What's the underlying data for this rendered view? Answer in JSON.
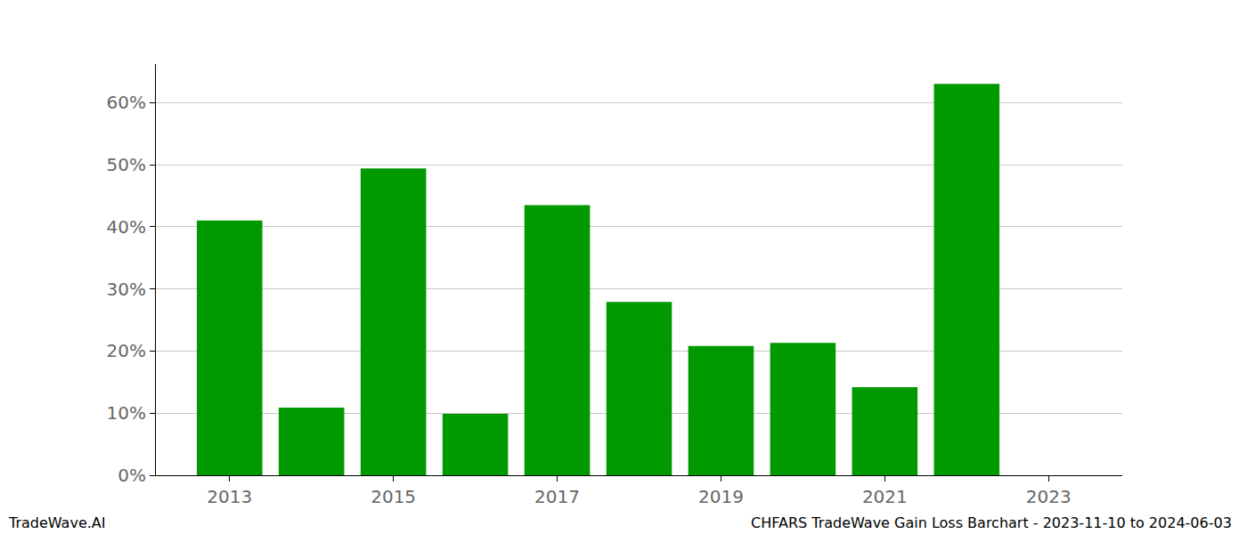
{
  "chart_data": {
    "type": "bar",
    "x": [
      2013,
      2014,
      2015,
      2016,
      2017,
      2018,
      2019,
      2020,
      2021,
      2022
    ],
    "values": [
      41.0,
      10.9,
      49.4,
      9.9,
      43.5,
      27.9,
      20.8,
      21.3,
      14.2,
      63.0
    ],
    "color": "#009900",
    "xlim": [
      2012.1,
      2023.9
    ],
    "xticks": [
      2013,
      2015,
      2017,
      2019,
      2021,
      2023
    ],
    "ylim": [
      0,
      66.2
    ],
    "yticks": [
      {
        "value": 0,
        "label": "0%"
      },
      {
        "value": 10,
        "label": "10%"
      },
      {
        "value": 20,
        "label": "20%"
      },
      {
        "value": 30,
        "label": "30%"
      },
      {
        "value": 40,
        "label": "40%"
      },
      {
        "value": 50,
        "label": "50%"
      },
      {
        "value": 60,
        "label": "60%"
      }
    ],
    "grid": true,
    "annotations": [
      "TradeWave.AI",
      "CHFARS TradeWave Gain Loss Barchart - 2023-11-10 to 2024-06-03"
    ]
  }
}
